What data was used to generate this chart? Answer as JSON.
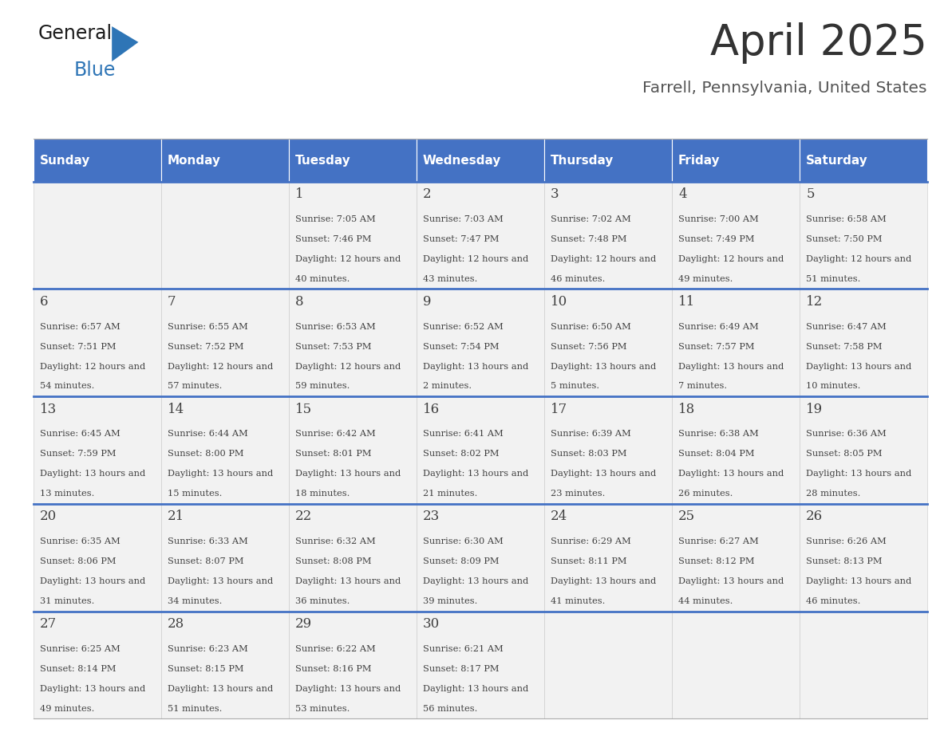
{
  "title": "April 2025",
  "subtitle": "Farrell, Pennsylvania, United States",
  "days_of_week": [
    "Sunday",
    "Monday",
    "Tuesday",
    "Wednesday",
    "Thursday",
    "Friday",
    "Saturday"
  ],
  "header_bg": "#4472C4",
  "header_text_color": "#FFFFFF",
  "cell_bg": "#F2F2F2",
  "row_line_color": "#4472C4",
  "text_color": "#404040",
  "title_color": "#333333",
  "subtitle_color": "#555555",
  "calendar": [
    [
      {
        "day": "",
        "sunrise": "",
        "sunset": "",
        "daylight": ""
      },
      {
        "day": "",
        "sunrise": "",
        "sunset": "",
        "daylight": ""
      },
      {
        "day": "1",
        "sunrise": "7:05 AM",
        "sunset": "7:46 PM",
        "daylight": "12 hours and 40 minutes."
      },
      {
        "day": "2",
        "sunrise": "7:03 AM",
        "sunset": "7:47 PM",
        "daylight": "12 hours and 43 minutes."
      },
      {
        "day": "3",
        "sunrise": "7:02 AM",
        "sunset": "7:48 PM",
        "daylight": "12 hours and 46 minutes."
      },
      {
        "day": "4",
        "sunrise": "7:00 AM",
        "sunset": "7:49 PM",
        "daylight": "12 hours and 49 minutes."
      },
      {
        "day": "5",
        "sunrise": "6:58 AM",
        "sunset": "7:50 PM",
        "daylight": "12 hours and 51 minutes."
      }
    ],
    [
      {
        "day": "6",
        "sunrise": "6:57 AM",
        "sunset": "7:51 PM",
        "daylight": "12 hours and 54 minutes."
      },
      {
        "day": "7",
        "sunrise": "6:55 AM",
        "sunset": "7:52 PM",
        "daylight": "12 hours and 57 minutes."
      },
      {
        "day": "8",
        "sunrise": "6:53 AM",
        "sunset": "7:53 PM",
        "daylight": "12 hours and 59 minutes."
      },
      {
        "day": "9",
        "sunrise": "6:52 AM",
        "sunset": "7:54 PM",
        "daylight": "13 hours and 2 minutes."
      },
      {
        "day": "10",
        "sunrise": "6:50 AM",
        "sunset": "7:56 PM",
        "daylight": "13 hours and 5 minutes."
      },
      {
        "day": "11",
        "sunrise": "6:49 AM",
        "sunset": "7:57 PM",
        "daylight": "13 hours and 7 minutes."
      },
      {
        "day": "12",
        "sunrise": "6:47 AM",
        "sunset": "7:58 PM",
        "daylight": "13 hours and 10 minutes."
      }
    ],
    [
      {
        "day": "13",
        "sunrise": "6:45 AM",
        "sunset": "7:59 PM",
        "daylight": "13 hours and 13 minutes."
      },
      {
        "day": "14",
        "sunrise": "6:44 AM",
        "sunset": "8:00 PM",
        "daylight": "13 hours and 15 minutes."
      },
      {
        "day": "15",
        "sunrise": "6:42 AM",
        "sunset": "8:01 PM",
        "daylight": "13 hours and 18 minutes."
      },
      {
        "day": "16",
        "sunrise": "6:41 AM",
        "sunset": "8:02 PM",
        "daylight": "13 hours and 21 minutes."
      },
      {
        "day": "17",
        "sunrise": "6:39 AM",
        "sunset": "8:03 PM",
        "daylight": "13 hours and 23 minutes."
      },
      {
        "day": "18",
        "sunrise": "6:38 AM",
        "sunset": "8:04 PM",
        "daylight": "13 hours and 26 minutes."
      },
      {
        "day": "19",
        "sunrise": "6:36 AM",
        "sunset": "8:05 PM",
        "daylight": "13 hours and 28 minutes."
      }
    ],
    [
      {
        "day": "20",
        "sunrise": "6:35 AM",
        "sunset": "8:06 PM",
        "daylight": "13 hours and 31 minutes."
      },
      {
        "day": "21",
        "sunrise": "6:33 AM",
        "sunset": "8:07 PM",
        "daylight": "13 hours and 34 minutes."
      },
      {
        "day": "22",
        "sunrise": "6:32 AM",
        "sunset": "8:08 PM",
        "daylight": "13 hours and 36 minutes."
      },
      {
        "day": "23",
        "sunrise": "6:30 AM",
        "sunset": "8:09 PM",
        "daylight": "13 hours and 39 minutes."
      },
      {
        "day": "24",
        "sunrise": "6:29 AM",
        "sunset": "8:11 PM",
        "daylight": "13 hours and 41 minutes."
      },
      {
        "day": "25",
        "sunrise": "6:27 AM",
        "sunset": "8:12 PM",
        "daylight": "13 hours and 44 minutes."
      },
      {
        "day": "26",
        "sunrise": "6:26 AM",
        "sunset": "8:13 PM",
        "daylight": "13 hours and 46 minutes."
      }
    ],
    [
      {
        "day": "27",
        "sunrise": "6:25 AM",
        "sunset": "8:14 PM",
        "daylight": "13 hours and 49 minutes."
      },
      {
        "day": "28",
        "sunrise": "6:23 AM",
        "sunset": "8:15 PM",
        "daylight": "13 hours and 51 minutes."
      },
      {
        "day": "29",
        "sunrise": "6:22 AM",
        "sunset": "8:16 PM",
        "daylight": "13 hours and 53 minutes."
      },
      {
        "day": "30",
        "sunrise": "6:21 AM",
        "sunset": "8:17 PM",
        "daylight": "13 hours and 56 minutes."
      },
      {
        "day": "",
        "sunrise": "",
        "sunset": "",
        "daylight": ""
      },
      {
        "day": "",
        "sunrise": "",
        "sunset": "",
        "daylight": ""
      },
      {
        "day": "",
        "sunrise": "",
        "sunset": "",
        "daylight": ""
      }
    ]
  ]
}
